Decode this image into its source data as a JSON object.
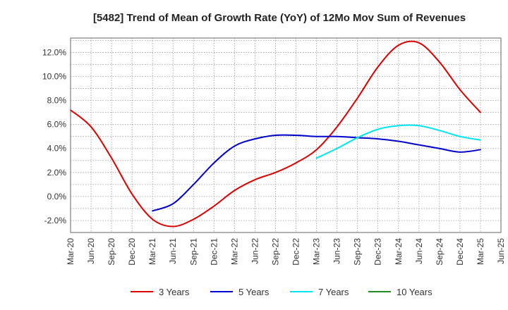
{
  "chart_data": {
    "type": "line",
    "title": "[5482]  Trend of Mean of Growth Rate (YoY) of 12Mo Mov Sum of Revenues",
    "xlabel": "",
    "ylabel": "",
    "ylim": [
      -3.0,
      13.2
    ],
    "yticks": [
      -2.0,
      0.0,
      2.0,
      4.0,
      6.0,
      8.0,
      10.0,
      12.0
    ],
    "ytick_labels": [
      "-2.0%",
      "0.0%",
      "2.0%",
      "4.0%",
      "6.0%",
      "8.0%",
      "10.0%",
      "12.0%"
    ],
    "categories": [
      "Mar-20",
      "Jun-20",
      "Sep-20",
      "Dec-20",
      "Mar-21",
      "Jun-21",
      "Sep-21",
      "Dec-21",
      "Mar-22",
      "Jun-22",
      "Sep-22",
      "Dec-22",
      "Mar-23",
      "Jun-23",
      "Sep-23",
      "Dec-23",
      "Mar-24",
      "Jun-24",
      "Sep-24",
      "Dec-24",
      "Mar-25",
      "Jun-25"
    ],
    "grid": true,
    "legend_position": "bottom",
    "series": [
      {
        "name": "3 Years",
        "color": "#dd0000",
        "values": [
          7.2,
          5.8,
          3.2,
          0.2,
          -1.9,
          -2.5,
          -1.9,
          -0.8,
          0.5,
          1.4,
          2.0,
          2.8,
          3.9,
          5.8,
          8.2,
          10.8,
          12.6,
          12.8,
          11.2,
          8.9,
          7.0,
          null
        ]
      },
      {
        "name": "5 Years",
        "color": "#0000cc",
        "values": [
          null,
          null,
          null,
          null,
          -1.2,
          -0.6,
          1.0,
          2.8,
          4.2,
          4.8,
          5.1,
          5.1,
          5.0,
          5.0,
          4.9,
          4.8,
          4.6,
          4.3,
          4.0,
          3.7,
          3.9,
          null
        ]
      },
      {
        "name": "7 Years",
        "color": "#00e5ee",
        "values": [
          null,
          null,
          null,
          null,
          null,
          null,
          null,
          null,
          null,
          null,
          null,
          null,
          3.2,
          4.0,
          4.9,
          5.6,
          5.9,
          5.9,
          5.5,
          5.0,
          4.7,
          null
        ]
      },
      {
        "name": "10 Years",
        "color": "#228b22",
        "values": [
          null,
          null,
          null,
          null,
          null,
          null,
          null,
          null,
          null,
          null,
          null,
          null,
          null,
          null,
          null,
          null,
          null,
          null,
          null,
          null,
          null,
          null
        ]
      }
    ]
  }
}
